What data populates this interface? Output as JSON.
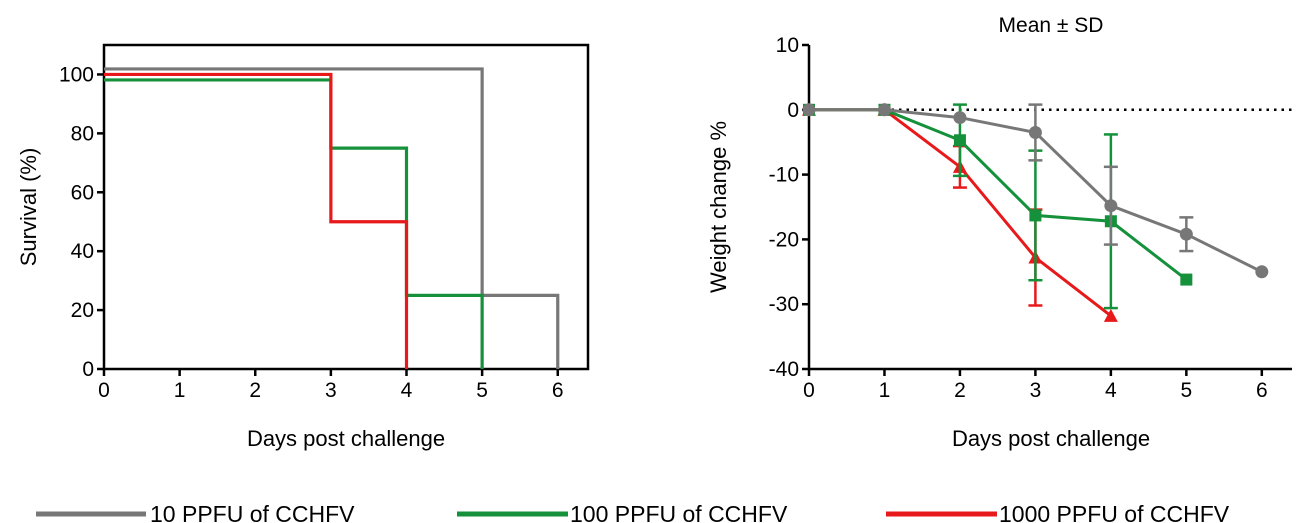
{
  "chart_data": [
    {
      "type": "line",
      "subtype": "survival-step",
      "title": "",
      "xlabel": "Days post challenge",
      "ylabel": "Survival (%)",
      "xlim": [
        0,
        6.4
      ],
      "ylim": [
        0,
        110
      ],
      "xticks": [
        "0",
        "1",
        "2",
        "3",
        "4",
        "5",
        "6"
      ],
      "yticks": [
        "0",
        "20",
        "40",
        "60",
        "80",
        "100"
      ],
      "grid": false,
      "series": [
        {
          "name": "10 PPFU of CCHFV",
          "color": "#777777",
          "x": [
            0,
            5,
            5,
            6,
            6
          ],
          "y": [
            100,
            100,
            25,
            25,
            0
          ]
        },
        {
          "name": "100 PPFU of CCHFV",
          "color": "#14913a",
          "x": [
            0,
            3,
            3,
            4,
            4,
            5,
            5
          ],
          "y": [
            100,
            100,
            75,
            75,
            25,
            25,
            0
          ]
        },
        {
          "name": "1000 PPFU of CCHFV",
          "color": "#e8191b",
          "x": [
            0,
            3,
            3,
            4,
            4
          ],
          "y": [
            100,
            100,
            50,
            50,
            0
          ]
        }
      ]
    },
    {
      "type": "line",
      "title": "Mean ± SD",
      "xlabel": "Days post challenge",
      "ylabel": "Weight change %",
      "xlim": [
        0,
        6.4
      ],
      "ylim": [
        -40,
        10
      ],
      "xticks": [
        "0",
        "1",
        "2",
        "3",
        "4",
        "5",
        "6"
      ],
      "yticks": [
        "-40",
        "-30",
        "-20",
        "-10",
        "0",
        "10"
      ],
      "reference_line": {
        "y": 0,
        "style": "dotted"
      },
      "grid": false,
      "series": [
        {
          "name": "10 PPFU of CCHFV",
          "color": "#777777",
          "marker": "circle",
          "x": [
            0,
            1,
            2,
            3,
            4,
            5,
            6
          ],
          "y": [
            0,
            0,
            -1.2,
            -3.5,
            -14.8,
            -19.2,
            -25
          ],
          "err": [
            0,
            0,
            0,
            4.3,
            6,
            2.6,
            0
          ]
        },
        {
          "name": "100 PPFU of CCHFV",
          "color": "#14913a",
          "marker": "square",
          "x": [
            0,
            1,
            2,
            3,
            4,
            5
          ],
          "y": [
            0,
            0,
            -4.7,
            -16.3,
            -17.2,
            -26.2
          ],
          "err": [
            0,
            0,
            5.5,
            10,
            13.4,
            0
          ]
        },
        {
          "name": "1000 PPFU of CCHFV",
          "color": "#e8191b",
          "marker": "triangle",
          "x": [
            0,
            1,
            2,
            3,
            4
          ],
          "y": [
            0,
            0,
            -8.8,
            -22.8,
            -31.8
          ],
          "err": [
            0,
            0,
            3.2,
            7.4,
            0
          ]
        }
      ]
    }
  ],
  "legend": {
    "placement": "bottom",
    "items": [
      {
        "label": "10 PPFU of CCHFV",
        "color": "#777777"
      },
      {
        "label": "100 PPFU of CCHFV",
        "color": "#14913a"
      },
      {
        "label": "1000 PPFU of CCHFV",
        "color": "#e8191b"
      }
    ]
  }
}
